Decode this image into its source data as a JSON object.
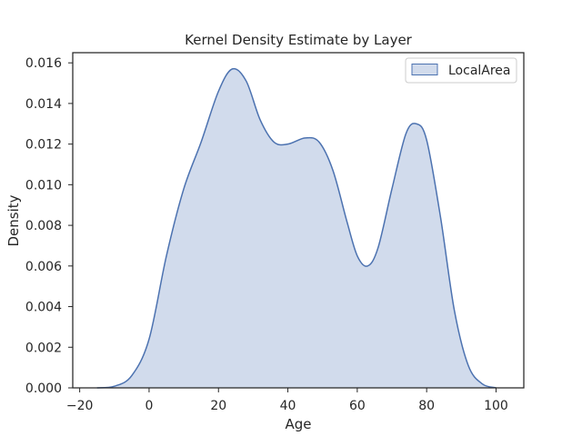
{
  "chart_data": {
    "type": "area",
    "title": "Kernel Density Estimate by Layer",
    "xlabel": "Age",
    "ylabel": "Density",
    "xlim": [
      -22,
      108
    ],
    "ylim": [
      0,
      0.0165
    ],
    "xticks": [
      -20,
      0,
      20,
      40,
      60,
      80,
      100
    ],
    "xtick_labels": [
      "−20",
      "0",
      "20",
      "40",
      "60",
      "80",
      "100"
    ],
    "yticks": [
      0,
      0.002,
      0.004,
      0.006,
      0.008,
      0.01,
      0.012,
      0.014,
      0.016
    ],
    "ytick_labels": [
      "0.000",
      "0.002",
      "0.004",
      "0.006",
      "0.008",
      "0.010",
      "0.012",
      "0.014",
      "0.016"
    ],
    "grid": false,
    "legend_position": "top-right",
    "series": [
      {
        "name": "LocalArea",
        "line_color": "#4c72b0",
        "fill_color": "#d1dbec",
        "points": [
          [
            -15,
            0.0
          ],
          [
            -10,
            8e-05
          ],
          [
            -5,
            0.0006
          ],
          [
            0,
            0.0024
          ],
          [
            5,
            0.0065
          ],
          [
            10,
            0.0098
          ],
          [
            15,
            0.0121
          ],
          [
            20,
            0.0146
          ],
          [
            24,
            0.0157
          ],
          [
            28,
            0.0151
          ],
          [
            32,
            0.0132
          ],
          [
            36,
            0.0121
          ],
          [
            40,
            0.012
          ],
          [
            45,
            0.0123
          ],
          [
            49,
            0.0121
          ],
          [
            53,
            0.0107
          ],
          [
            57,
            0.0082
          ],
          [
            60,
            0.0065
          ],
          [
            63,
            0.006
          ],
          [
            66,
            0.0069
          ],
          [
            70,
            0.0098
          ],
          [
            74,
            0.0125
          ],
          [
            77,
            0.013
          ],
          [
            80,
            0.0122
          ],
          [
            84,
            0.0084
          ],
          [
            88,
            0.0038
          ],
          [
            92,
            0.0011
          ],
          [
            96,
            0.0002
          ],
          [
            100,
            0.0
          ]
        ]
      }
    ]
  }
}
